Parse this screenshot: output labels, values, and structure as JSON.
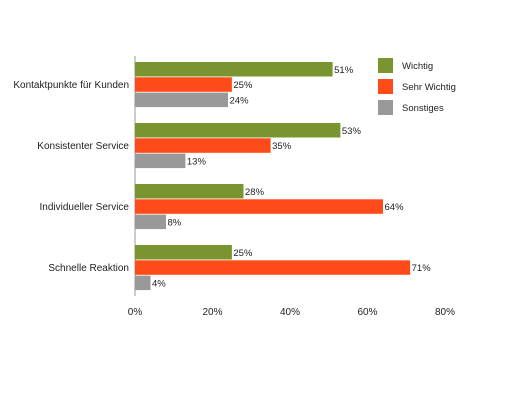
{
  "chart_data": {
    "type": "bar",
    "orientation": "horizontal",
    "categories": [
      "Kontaktpunkte für Kunden",
      "Konsistenter Service",
      "Individueller Service",
      "Schnelle Reaktion"
    ],
    "series": [
      {
        "name": "Wichtig",
        "values": [
          51,
          53,
          28,
          25
        ],
        "labels": [
          "51%",
          "53%",
          "28%",
          "25%"
        ],
        "color": "#7a9430"
      },
      {
        "name": "Sehr Wichtig",
        "values": [
          25,
          35,
          64,
          71
        ],
        "labels": [
          "25%",
          "35%",
          "64%",
          "71%"
        ],
        "color": "#ff4a1a"
      },
      {
        "name": "Sonstiges",
        "values": [
          24,
          13,
          8,
          4
        ],
        "labels": [
          "24%",
          "13%",
          "8%",
          "4%"
        ],
        "color": "#999999"
      }
    ],
    "xlim": [
      0,
      80
    ],
    "xticks": [
      0,
      20,
      40,
      60,
      80
    ],
    "xtick_labels": [
      "0%",
      "20%",
      "40%",
      "60%",
      "80%"
    ],
    "legend_position": "top-right",
    "grid": false,
    "title": "",
    "xlabel": "",
    "ylabel": ""
  }
}
